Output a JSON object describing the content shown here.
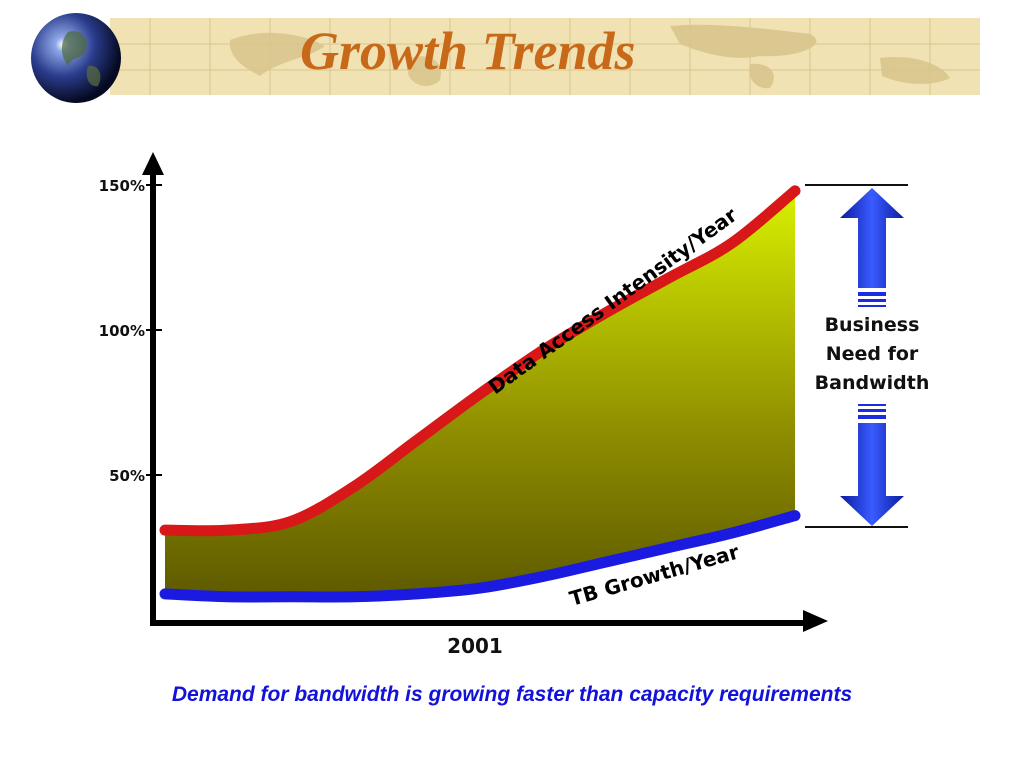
{
  "slide": {
    "title": "Growth Trends",
    "caption": "Demand for bandwidth is growing faster than capacity requirements"
  },
  "colors": {
    "title": "#c8691a",
    "caption": "#1212d8",
    "header_band": "#f1e2b3",
    "demand_line": "#e01818",
    "capacity_line": "#1a1ae0",
    "gap_fill_top": "#d8f000",
    "gap_fill_bottom": "#5e5a00",
    "arrow": "#1a2ee0"
  },
  "icons": {
    "globe": "globe-icon"
  },
  "chart_data": {
    "type": "area",
    "xlabel": "2001",
    "ylabel": "",
    "ylim": [
      0,
      150
    ],
    "yticks": [
      {
        "label": "50%",
        "value": 50
      },
      {
        "label": "100%",
        "value": 100
      },
      {
        "label": "150%",
        "value": 150
      }
    ],
    "x": [
      0,
      0.1,
      0.2,
      0.3,
      0.4,
      0.5,
      0.6,
      0.7,
      0.8,
      0.9,
      1.0
    ],
    "series": [
      {
        "name": "Data Access Intensity/Year",
        "values": [
          31,
          31,
          34,
          46,
          62,
          78,
          93,
          106,
          118,
          130,
          148
        ]
      },
      {
        "name": "TB Growth/Year",
        "values": [
          9,
          8,
          8,
          8,
          9,
          11,
          15,
          20,
          25,
          30,
          36
        ]
      }
    ],
    "annotation": "Business Need for Bandwidth",
    "annotation_lines": [
      "Business",
      "Need for",
      "Bandwidth"
    ]
  }
}
